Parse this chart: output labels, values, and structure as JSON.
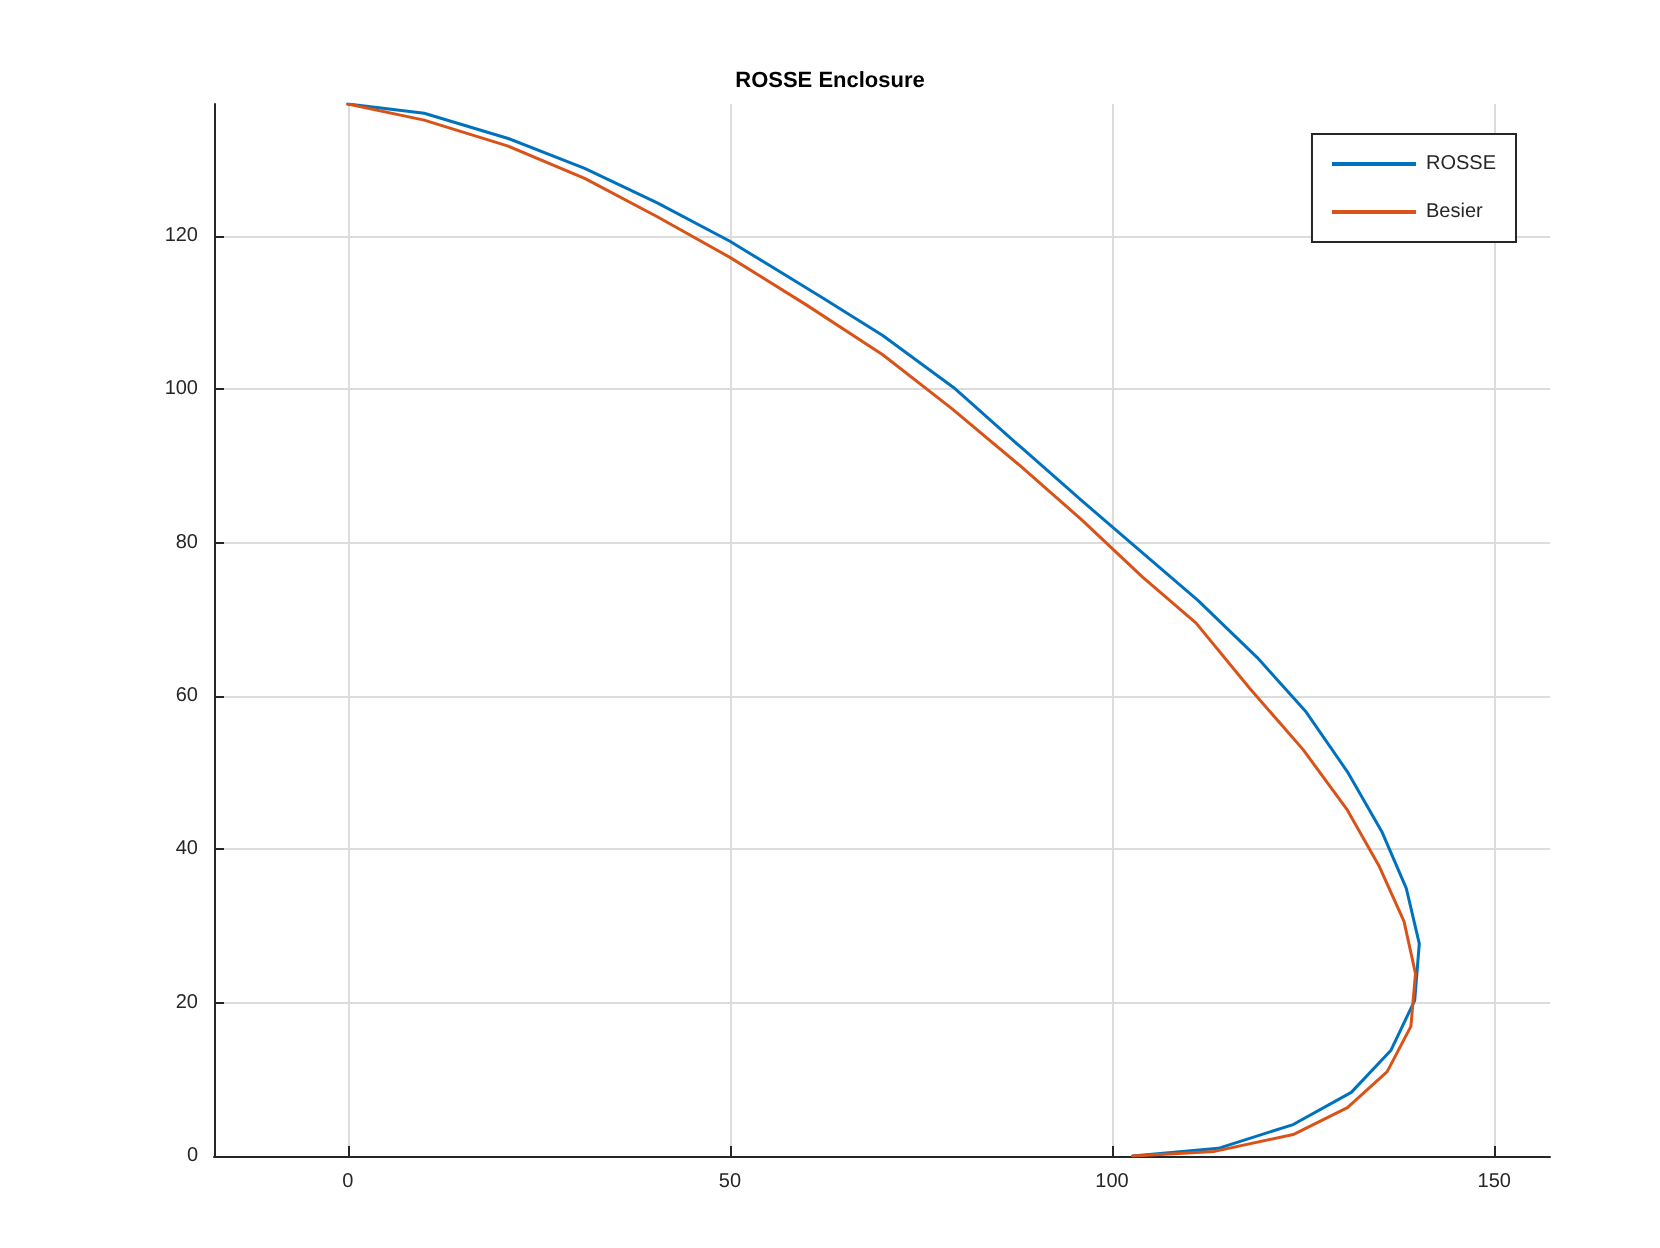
{
  "chart_data": {
    "type": "line",
    "title": "ROSSE Enclosure",
    "xlim": [
      -17.5,
      157.3
    ],
    "ylim": [
      0,
      137.2
    ],
    "xticks": [
      0,
      50,
      100,
      150
    ],
    "yticks": [
      0,
      20,
      40,
      60,
      80,
      100,
      120
    ],
    "grid": true,
    "legend": "top right",
    "marker": "none",
    "line_style": "solid",
    "series": [
      {
        "name": "ROSSE",
        "color": "#0072bd",
        "x": [
          0,
          10,
          21,
          31,
          40.5,
          50,
          62,
          70,
          79.3,
          88,
          96,
          103,
          111.2,
          119,
          125.4,
          130.8,
          135.3,
          138.5,
          140.2,
          139.6,
          136.5,
          131.3,
          123.7,
          113.9,
          102.7
        ],
        "values": [
          137.2,
          136,
          132.7,
          128.8,
          124.3,
          119.3,
          112,
          107,
          100.2,
          92.5,
          85.5,
          79.5,
          72.5,
          65,
          57.9,
          50.1,
          42.3,
          34.9,
          27.7,
          20.3,
          13.8,
          8.3,
          4.1,
          1,
          0
        ]
      },
      {
        "name": "Besier",
        "color": "#d95319",
        "x": [
          0,
          10,
          21,
          31,
          40.5,
          50,
          60,
          70,
          79,
          88,
          96,
          104,
          111,
          118,
          125,
          130.8,
          134.9,
          138.2,
          139.7,
          139.1,
          136,
          130.8,
          123.7,
          113.4,
          102.7
        ],
        "values": [
          137.2,
          135.1,
          131.7,
          127.5,
          122.5,
          117.2,
          111,
          104.5,
          97.5,
          90,
          83,
          75.5,
          69.5,
          61,
          53,
          45.1,
          37.9,
          30.6,
          23.8,
          16.9,
          11,
          6.3,
          2.8,
          0.6,
          0
        ]
      }
    ]
  }
}
